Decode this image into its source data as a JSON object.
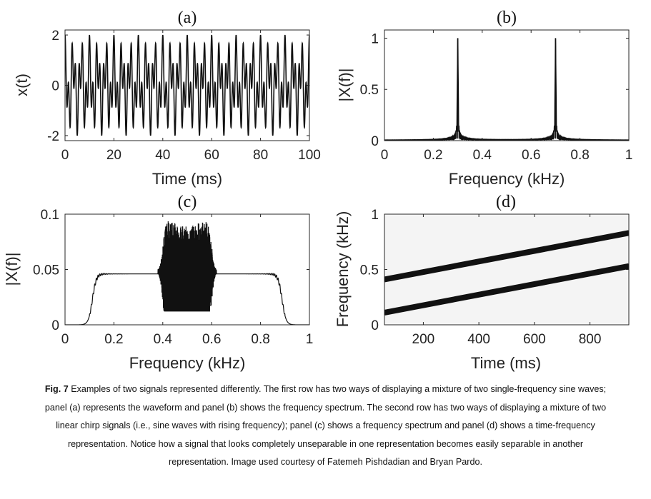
{
  "chart_data": [
    {
      "panel": "(a)",
      "type": "line",
      "title": "(a)",
      "xlabel": "Time (ms)",
      "ylabel": "x(t)",
      "xlim": [
        0,
        100
      ],
      "ylim": [
        -2.2,
        2.2
      ],
      "xticks": [
        "0",
        "20",
        "40",
        "60",
        "80",
        "100"
      ],
      "yticks": [
        "-2",
        "0",
        "2"
      ],
      "signal": "mixture of two sine waves, 0.3 kHz and 0.7 kHz, amplitude 1 each",
      "components": [
        {
          "frequency_khz": 0.3,
          "amplitude": 1
        },
        {
          "frequency_khz": 0.7,
          "amplitude": 1
        }
      ]
    },
    {
      "panel": "(b)",
      "type": "line",
      "title": "(b)",
      "xlabel": "Frequency (kHz)",
      "ylabel": "|X(f)|",
      "xlim": [
        0,
        1
      ],
      "ylim": [
        0,
        1.08
      ],
      "xticks": [
        "0",
        "0.2",
        "0.4",
        "0.6",
        "0.8",
        "1"
      ],
      "yticks": [
        "0",
        "0.5",
        "1"
      ],
      "peaks": [
        {
          "x": 0.3,
          "y": 1.0
        },
        {
          "x": 0.7,
          "y": 1.0
        }
      ]
    },
    {
      "panel": "(c)",
      "type": "line",
      "title": "(c)",
      "xlabel": "Frequency (kHz)",
      "ylabel": "|X(f)|",
      "xlim": [
        0,
        1
      ],
      "ylim": [
        0,
        0.1
      ],
      "xticks": [
        "0",
        "0.2",
        "0.4",
        "0.6",
        "0.8",
        "1"
      ],
      "yticks": [
        "0",
        "0.05",
        "0.1"
      ],
      "bands": [
        {
          "from": 0.1,
          "to": 0.9,
          "level": 0.046,
          "edge_peak": 0.053
        },
        {
          "from": 0.4,
          "to": 0.6,
          "level_min": 0.012,
          "level_max": 0.098
        }
      ]
    },
    {
      "panel": "(d)",
      "type": "heatmap",
      "title": "(d)",
      "xlabel": "Time (ms)",
      "ylabel": "Frequency (kHz)",
      "xlim": [
        60,
        940
      ],
      "ylim": [
        0,
        1
      ],
      "xticks": [
        "200",
        "400",
        "600",
        "800"
      ],
      "yticks": [
        "0",
        "0.5",
        "1"
      ],
      "chirps": [
        {
          "start": [
            60,
            0.41
          ],
          "end": [
            940,
            0.83
          ]
        },
        {
          "start": [
            60,
            0.11
          ],
          "end": [
            940,
            0.53
          ]
        }
      ]
    }
  ],
  "caption": {
    "label": "Fig. 7",
    "text": " Examples of two signals represented differently. The first row has two ways of displaying a mixture of two single-frequency sine waves; panel (a) represents the waveform and panel (b) shows the frequency spectrum. The second row has two ways of displaying a mixture of two linear chirp signals (i.e., sine waves with rising frequency); panel (c) shows a frequency spectrum and panel (d) shows a time-frequency representation. Notice how a signal that looks completely unseparable in one representation becomes easily separable in another representation. Image used courtesy of Fatemeh Pishdadian and Bryan Pardo."
  },
  "colors": {
    "line": "#111111",
    "axis": "#262626",
    "background": "#ffffff",
    "heatmap_bg": "#f4f4f4"
  }
}
